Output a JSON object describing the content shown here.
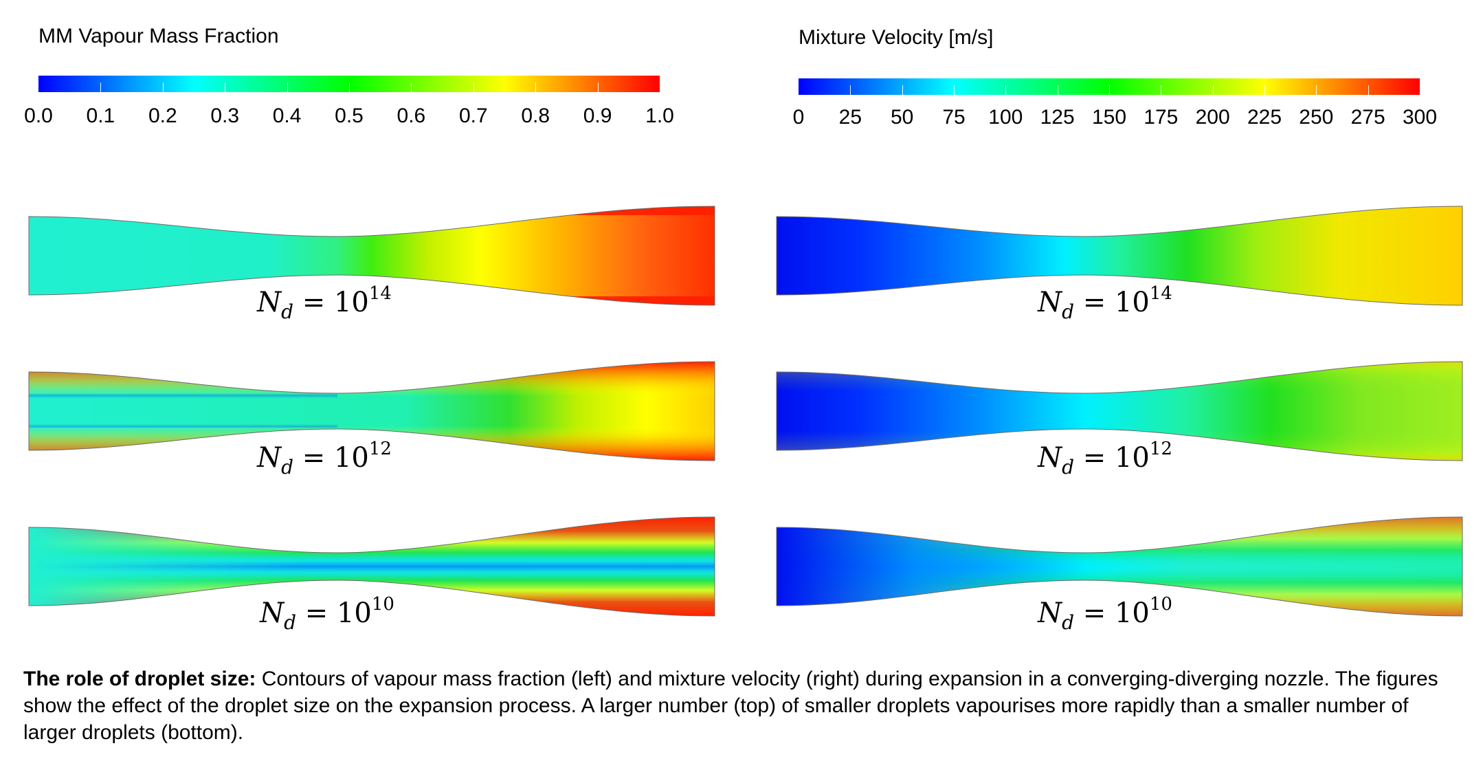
{
  "colorbars": {
    "left": {
      "title": "MM Vapour Mass Fraction",
      "tick_labels": [
        "0.0",
        "0.1",
        "0.2",
        "0.3",
        "0.4",
        "0.5",
        "0.6",
        "0.7",
        "0.8",
        "0.9",
        "1.0"
      ],
      "colors": [
        "#0000ff",
        "#00ffff",
        "#00ff00",
        "#ffff00",
        "#ff0000"
      ]
    },
    "right": {
      "title": "Mixture Velocity [m/s]",
      "tick_labels": [
        "0",
        "25",
        "50",
        "75",
        "100",
        "125",
        "150",
        "175",
        "200",
        "225",
        "250",
        "275",
        "300"
      ],
      "colors": [
        "#0000ff",
        "#00ffff",
        "#00ff00",
        "#ffff00",
        "#ff0000"
      ]
    }
  },
  "panels": {
    "row1": {
      "label_base": "N",
      "label_sub": "d",
      "label_eq": " = 10",
      "label_exp": "14"
    },
    "row2": {
      "label_base": "N",
      "label_sub": "d",
      "label_eq": " = 10",
      "label_exp": "12"
    },
    "row3": {
      "label_base": "N",
      "label_sub": "d",
      "label_eq": " = 10",
      "label_exp": "10"
    }
  },
  "caption": {
    "bold": "The role of droplet size:",
    "text": " Contours of vapour mass fraction (left) and mixture velocity (right) during expansion in a converging-diverging nozzle. The figures show the effect of the droplet size on the expansion process. A larger number (top) of smaller droplets vapourises more rapidly than a smaller number of larger droplets (bottom)."
  }
}
